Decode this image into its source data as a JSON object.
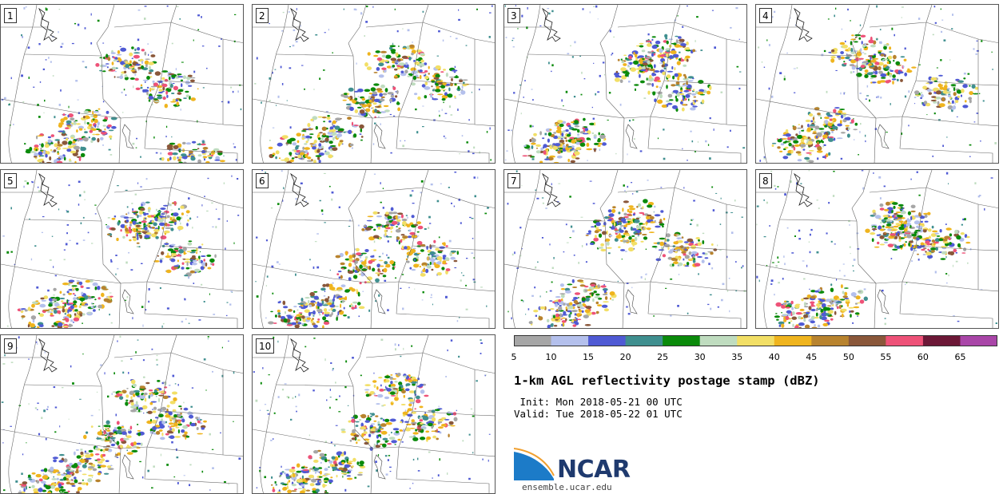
{
  "panels": [
    {
      "label": "1"
    },
    {
      "label": "2"
    },
    {
      "label": "3"
    },
    {
      "label": "4"
    },
    {
      "label": "5"
    },
    {
      "label": "6"
    },
    {
      "label": "7"
    },
    {
      "label": "8"
    },
    {
      "label": "9"
    },
    {
      "label": "10"
    }
  ],
  "colorbar": {
    "ticks": [
      "5",
      "10",
      "15",
      "20",
      "25",
      "30",
      "35",
      "40",
      "45",
      "50",
      "55",
      "60",
      "65"
    ],
    "colors": [
      "#a6a6a6",
      "#b4c0ec",
      "#4f5ad4",
      "#3f8f8f",
      "#0a8a0a",
      "#bfdcbf",
      "#f2df66",
      "#efb41e",
      "#b8832e",
      "#8a573a",
      "#ee5278",
      "#6c1837",
      "#a946a8"
    ]
  },
  "title": "1-km AGL reflectivity postage stamp (dBZ)",
  "init": " Init: Mon 2018-05-21 00 UTC",
  "valid": "Valid: Tue 2018-05-22 01 UTC",
  "logo": {
    "text": "NCAR",
    "url": "ensemble.ucar.edu",
    "color": "#1f3a6e",
    "accent": "#1c7bc8"
  }
}
